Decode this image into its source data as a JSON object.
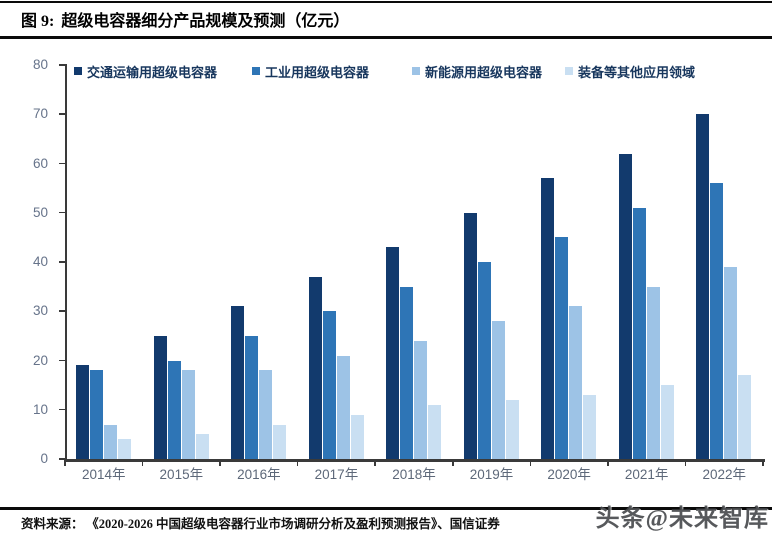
{
  "figure": {
    "label": "图 9:",
    "title": "超级电容器细分产品规模及预测（亿元）"
  },
  "source": {
    "label": "资料来源：",
    "text": "《2020-2026 中国超级电容器行业市场调研分析及盈利预测报告》、国信证券"
  },
  "watermark": {
    "text": "头条@未来智库"
  },
  "chart_data": {
    "type": "bar",
    "title": "超级电容器细分产品规模及预测（亿元）",
    "unit": "亿元",
    "categories": [
      "2014年",
      "2015年",
      "2016年",
      "2017年",
      "2018年",
      "2019年",
      "2020年",
      "2021年",
      "2022年"
    ],
    "series": [
      {
        "name": "交通运输用超级电容器",
        "color": "#123A6D",
        "values": [
          19,
          25,
          31,
          37,
          43,
          50,
          57,
          62,
          70
        ]
      },
      {
        "name": "工业用超级电容器",
        "color": "#2E75B6",
        "values": [
          18,
          20,
          25,
          30,
          35,
          40,
          45,
          51,
          56
        ]
      },
      {
        "name": "新能源用超级电容器",
        "color": "#9DC3E6",
        "values": [
          7,
          18,
          18,
          21,
          24,
          28,
          31,
          35,
          39
        ]
      },
      {
        "name": "装备等其他应用领域",
        "color": "#C9DFF2",
        "values": [
          4,
          5,
          7,
          9,
          11,
          12,
          13,
          15,
          17
        ]
      }
    ],
    "ylim": [
      0,
      80
    ],
    "yticks": [
      0,
      10,
      20,
      30,
      40,
      50,
      60,
      70,
      80
    ],
    "grid": false,
    "legend_position": "top",
    "axis_color": "#3A3A3A",
    "tick_label_color": "#66738A",
    "legend_text_color": "#17365D"
  }
}
